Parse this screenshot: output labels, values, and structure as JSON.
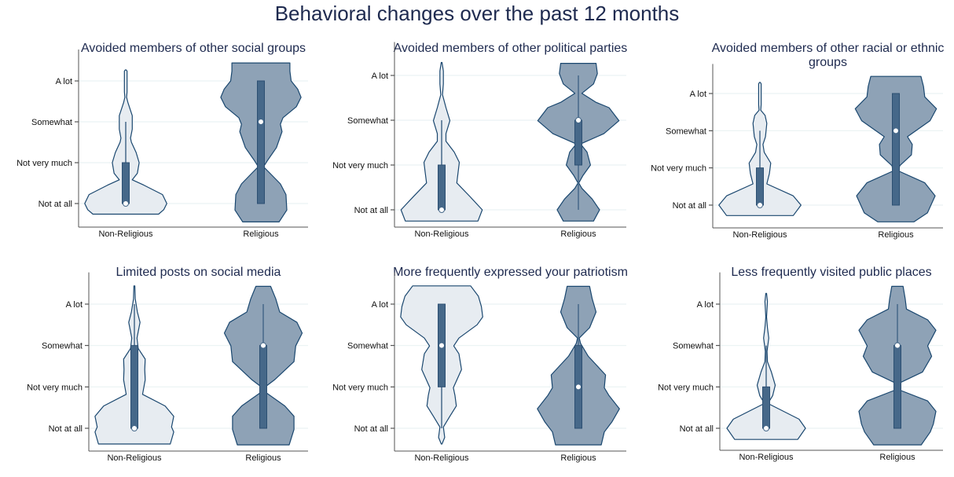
{
  "chart_data": {
    "type": "violin",
    "title": "Behavioral changes over the past 12 months",
    "y_categories": [
      "Not at all",
      "Not very much",
      "Somewhat",
      "A lot"
    ],
    "x_categories": [
      "Non-Religious",
      "Religious"
    ],
    "colors": {
      "non_religious_fill": "#e7ecf1",
      "religious_fill": "#8ea2b6",
      "outline": "#1a476f",
      "box": "#466889",
      "grid": "#eaf2f3",
      "title": "#1e2a4f"
    },
    "panels": [
      {
        "title": [
          "Avoided members of other social groups"
        ],
        "violins": [
          {
            "group": "Non-Religious",
            "box": {
              "whisker_low": 1,
              "q1": 1,
              "median": 1,
              "q3": 2,
              "whisker_high": 3
            },
            "density": [
              [
                0.74,
                0.76
              ],
              [
                0.85,
                0.88
              ],
              [
                1.0,
                0.95
              ],
              [
                1.22,
                0.85
              ],
              [
                1.45,
                0.42
              ],
              [
                1.58,
                0.15
              ],
              [
                1.74,
                0.27
              ],
              [
                2.0,
                0.31
              ],
              [
                2.25,
                0.24
              ],
              [
                2.5,
                0.13
              ],
              [
                2.6,
                0.11
              ],
              [
                2.82,
                0.15
              ],
              [
                3.15,
                0.15
              ],
              [
                3.47,
                0.05
              ],
              [
                3.6,
                0.02
              ],
              [
                3.73,
                0.03
              ],
              [
                4.24,
                0.03
              ],
              [
                4.27,
                0.01
              ]
            ]
          },
          {
            "group": "Religious",
            "box": {
              "whisker_low": 1,
              "q1": 1,
              "median": 3,
              "q3": 4,
              "whisker_high": 4
            },
            "density": [
              [
                0.55,
                0.42
              ],
              [
                0.84,
                0.6
              ],
              [
                1.22,
                0.58
              ],
              [
                1.48,
                0.45
              ],
              [
                1.74,
                0.21
              ],
              [
                1.9,
                0.06
              ],
              [
                2.05,
                0.15
              ],
              [
                2.37,
                0.36
              ],
              [
                2.76,
                0.49
              ],
              [
                2.94,
                0.45
              ],
              [
                3.1,
                0.51
              ],
              [
                3.37,
                0.82
              ],
              [
                3.6,
                0.93
              ],
              [
                3.8,
                0.85
              ],
              [
                4.0,
                0.7
              ],
              [
                4.24,
                0.67
              ],
              [
                4.44,
                0.67
              ]
            ]
          }
        ]
      },
      {
        "title": [
          "Avoided members of other political parties"
        ],
        "violins": [
          {
            "group": "Non-Religious",
            "box": {
              "whisker_low": 1,
              "q1": 1,
              "median": 1,
              "q3": 2,
              "whisker_high": 3
            },
            "density": [
              [
                0.75,
                0.84
              ],
              [
                1.0,
                0.94
              ],
              [
                1.3,
                0.65
              ],
              [
                1.6,
                0.35
              ],
              [
                1.83,
                0.38
              ],
              [
                2.06,
                0.41
              ],
              [
                2.29,
                0.29
              ],
              [
                2.53,
                0.1
              ],
              [
                2.7,
                0.1
              ],
              [
                2.99,
                0.19
              ],
              [
                3.28,
                0.1
              ],
              [
                3.57,
                0.02
              ],
              [
                3.81,
                0.04
              ],
              [
                4.1,
                0.04
              ],
              [
                4.29,
                0.01
              ]
            ]
          },
          {
            "group": "Religious",
            "box": {
              "whisker_low": 1,
              "q1": 2,
              "median": 3,
              "q3": 3,
              "whisker_high": 4
            },
            "density": [
              [
                0.75,
                0.35
              ],
              [
                1.0,
                0.49
              ],
              [
                1.24,
                0.32
              ],
              [
                1.48,
                0.08
              ],
              [
                1.6,
                0.01
              ],
              [
                1.77,
                0.11
              ],
              [
                2.0,
                0.28
              ],
              [
                2.29,
                0.2
              ],
              [
                2.47,
                0.05
              ],
              [
                2.7,
                0.59
              ],
              [
                2.99,
                0.94
              ],
              [
                3.28,
                0.71
              ],
              [
                3.4,
                0.41
              ],
              [
                3.6,
                0.08
              ],
              [
                3.81,
                0.35
              ],
              [
                4.04,
                0.44
              ],
              [
                4.27,
                0.41
              ]
            ]
          }
        ]
      },
      {
        "title": [
          "Avoided members of other racial or ethnic",
          "groups"
        ],
        "violins": [
          {
            "group": "Non-Religious",
            "box": {
              "whisker_low": 1,
              "q1": 1,
              "median": 1,
              "q3": 2,
              "whisker_high": 3
            },
            "density": [
              [
                0.72,
                0.77
              ],
              [
                1.0,
                0.95
              ],
              [
                1.25,
                0.77
              ],
              [
                1.57,
                0.16
              ],
              [
                1.85,
                0.22
              ],
              [
                2.13,
                0.25
              ],
              [
                2.42,
                0.1
              ],
              [
                2.63,
                0.07
              ],
              [
                2.84,
                0.13
              ],
              [
                3.2,
                0.16
              ],
              [
                3.41,
                0.12
              ],
              [
                3.55,
                0.02
              ],
              [
                3.7,
                0.03
              ],
              [
                4.26,
                0.03
              ],
              [
                4.3,
                0.01
              ]
            ]
          },
          {
            "group": "Religious",
            "box": {
              "whisker_low": 1,
              "q1": 1,
              "median": 3,
              "q3": 4,
              "whisker_high": 4
            },
            "density": [
              [
                0.55,
                0.42
              ],
              [
                0.79,
                0.73
              ],
              [
                1.25,
                0.91
              ],
              [
                1.6,
                0.67
              ],
              [
                1.92,
                0.06
              ],
              [
                2.06,
                0.09
              ],
              [
                2.35,
                0.36
              ],
              [
                2.63,
                0.38
              ],
              [
                2.84,
                0.27
              ],
              [
                3.27,
                0.79
              ],
              [
                3.59,
                0.94
              ],
              [
                3.91,
                0.67
              ],
              [
                4.19,
                0.64
              ],
              [
                4.46,
                0.58
              ]
            ]
          }
        ]
      },
      {
        "title": [
          "Limited posts on social media"
        ],
        "violins": [
          {
            "group": "Non-Religious",
            "box": {
              "whisker_low": 1,
              "q1": 1,
              "median": 1,
              "q3": 3,
              "whisker_high": 4
            },
            "density": [
              [
                0.62,
                0.83
              ],
              [
                0.91,
                0.91
              ],
              [
                1.03,
                0.86
              ],
              [
                1.29,
                0.91
              ],
              [
                1.54,
                0.71
              ],
              [
                1.82,
                0.19
              ],
              [
                2.17,
                0.25
              ],
              [
                2.42,
                0.24
              ],
              [
                2.67,
                0.25
              ],
              [
                2.93,
                0.09
              ],
              [
                3.18,
                0.06
              ],
              [
                3.56,
                0.13
              ],
              [
                3.81,
                0.07
              ],
              [
                4.13,
                0.02
              ],
              [
                4.44,
                0.01
              ]
            ]
          },
          {
            "group": "Religious",
            "box": {
              "whisker_low": 1,
              "q1": 1,
              "median": 3,
              "q3": 3,
              "whisker_high": 4
            },
            "density": [
              [
                0.6,
                0.6
              ],
              [
                0.97,
                0.71
              ],
              [
                1.29,
                0.71
              ],
              [
                1.54,
                0.5
              ],
              [
                1.85,
                0.08
              ],
              [
                1.98,
                0.02
              ],
              [
                2.17,
                0.26
              ],
              [
                2.61,
                0.71
              ],
              [
                2.99,
                0.75
              ],
              [
                3.3,
                0.9
              ],
              [
                3.56,
                0.78
              ],
              [
                3.81,
                0.38
              ],
              [
                4.13,
                0.29
              ],
              [
                4.43,
                0.17
              ]
            ]
          }
        ]
      },
      {
        "title": [
          "More frequently expressed your patriotism"
        ],
        "violins": [
          {
            "group": "Non-Religious",
            "box": {
              "whisker_low": 1,
              "q1": 2,
              "median": 3,
              "q3": 4,
              "whisker_high": 4
            },
            "density": [
              [
                0.62,
                0.01
              ],
              [
                0.78,
                0.07
              ],
              [
                1.03,
                0.04
              ],
              [
                1.29,
                0.19
              ],
              [
                1.54,
                0.34
              ],
              [
                1.79,
                0.31
              ],
              [
                1.98,
                0.27
              ],
              [
                2.42,
                0.46
              ],
              [
                2.8,
                0.4
              ],
              [
                2.99,
                0.28
              ],
              [
                3.18,
                0.4
              ],
              [
                3.5,
                0.82
              ],
              [
                3.69,
                0.95
              ],
              [
                3.94,
                0.92
              ],
              [
                4.19,
                0.85
              ],
              [
                4.44,
                0.67
              ]
            ]
          },
          {
            "group": "Religious",
            "box": {
              "whisker_low": 1,
              "q1": 1,
              "median": 2,
              "q3": 3,
              "whisker_high": 4
            },
            "density": [
              [
                0.6,
                0.53
              ],
              [
                0.91,
                0.6
              ],
              [
                1.16,
                0.78
              ],
              [
                1.47,
                0.95
              ],
              [
                1.79,
                0.71
              ],
              [
                1.98,
                0.6
              ],
              [
                2.29,
                0.63
              ],
              [
                2.74,
                0.23
              ],
              [
                3.05,
                0.05
              ],
              [
                3.18,
                0.02
              ],
              [
                3.43,
                0.26
              ],
              [
                3.81,
                0.41
              ],
              [
                4.13,
                0.32
              ],
              [
                4.43,
                0.26
              ]
            ]
          }
        ]
      },
      {
        "title": [
          "Less frequently visited public places"
        ],
        "violins": [
          {
            "group": "Non-Religious",
            "box": {
              "whisker_low": 1,
              "q1": 1,
              "median": 1,
              "q3": 2,
              "whisker_high": 3
            },
            "density": [
              [
                0.73,
                0.73
              ],
              [
                1.0,
                0.91
              ],
              [
                1.22,
                0.76
              ],
              [
                1.6,
                0.04
              ],
              [
                1.79,
                0.15
              ],
              [
                2.04,
                0.21
              ],
              [
                2.36,
                0.12
              ],
              [
                2.61,
                0.03
              ],
              [
                2.86,
                0.02
              ],
              [
                3.18,
                0.06
              ],
              [
                3.43,
                0.03
              ],
              [
                3.69,
                0.01
              ],
              [
                4.06,
                0.03
              ],
              [
                4.26,
                0.01
              ]
            ]
          },
          {
            "group": "Religious",
            "box": {
              "whisker_low": 1,
              "q1": 1,
              "median": 3,
              "q3": 3,
              "whisker_high": 4
            },
            "density": [
              [
                0.6,
                0.55
              ],
              [
                0.91,
                0.76
              ],
              [
                1.1,
                0.83
              ],
              [
                1.41,
                0.89
              ],
              [
                1.66,
                0.7
              ],
              [
                1.92,
                0.06
              ],
              [
                2.1,
                0.06
              ],
              [
                2.36,
                0.58
              ],
              [
                2.74,
                0.79
              ],
              [
                2.99,
                0.7
              ],
              [
                3.37,
                0.89
              ],
              [
                3.62,
                0.7
              ],
              [
                3.88,
                0.21
              ],
              [
                4.13,
                0.18
              ],
              [
                4.43,
                0.13
              ]
            ]
          }
        ]
      }
    ]
  }
}
